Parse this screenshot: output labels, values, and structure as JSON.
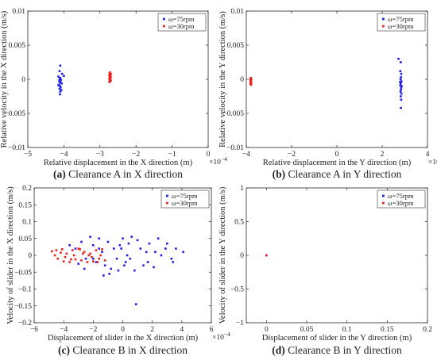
{
  "chart_data": [
    {
      "type": "scatter",
      "caption_label": "(a)",
      "caption_text": " Clearance A in X direction",
      "xlabel": "Relative displacement in the X direction (m)",
      "ylabel": "Relative velocity in the X direction (m/s)",
      "x_multiplier": "×10",
      "x_multiplier_exp": "-4",
      "xlim": [
        -5,
        0
      ],
      "ylim": [
        -0.01,
        0.01
      ],
      "xticks": [
        -5,
        -4,
        -3,
        -2,
        -1,
        0
      ],
      "xtick_labels": [
        "-5",
        "-4",
        "-3",
        "-2",
        "-1",
        "0"
      ],
      "yticks": [
        -0.01,
        -0.005,
        0,
        0.005,
        0.01
      ],
      "ytick_labels": [
        "-0.01",
        "-0.005",
        "0",
        "0.005",
        "0.01"
      ],
      "legend_position": "top-right",
      "series": [
        {
          "name": "ω=75rpm",
          "color": "#1f1fe6",
          "points": [
            [
              -4.1,
              0.002
            ],
            [
              -4.12,
              0.0012
            ],
            [
              -4.05,
              0.0008
            ],
            [
              -4.15,
              0.0004
            ],
            [
              -4.1,
              0.0002
            ],
            [
              -4.08,
              -0.0001
            ],
            [
              -4.13,
              -0.0003
            ],
            [
              -4.1,
              -0.0005
            ],
            [
              -4.06,
              -0.0006
            ],
            [
              -4.14,
              -0.0008
            ],
            [
              -4.1,
              -0.001
            ],
            [
              -4.09,
              -0.0012
            ],
            [
              -4.12,
              -0.0014
            ],
            [
              -4.07,
              -0.0016
            ],
            [
              -4.1,
              -0.0018
            ],
            [
              -4.11,
              -0.0022
            ],
            [
              -4.0,
              0.0005
            ],
            [
              -4.15,
              -0.0009
            ],
            [
              -4.1,
              -0.0004
            ],
            [
              -4.12,
              0.0
            ]
          ]
        },
        {
          "name": "ω=30rpm",
          "color": "#e6231f",
          "points": [
            [
              -2.72,
              0.001
            ],
            [
              -2.7,
              0.0008
            ],
            [
              -2.74,
              0.0006
            ],
            [
              -2.71,
              0.0005
            ],
            [
              -2.73,
              0.0004
            ],
            [
              -2.7,
              0.0003
            ],
            [
              -2.72,
              0.0002
            ],
            [
              -2.74,
              0.0001
            ],
            [
              -2.71,
              0.0
            ],
            [
              -2.73,
              -0.0001
            ],
            [
              -2.7,
              -0.0002
            ],
            [
              -2.72,
              -0.0003
            ],
            [
              -2.74,
              -0.0004
            ],
            [
              -2.71,
              0.0006
            ],
            [
              -2.73,
              0.0009
            ]
          ]
        }
      ]
    },
    {
      "type": "scatter",
      "caption_label": "(b)",
      "caption_text": " Clearance A in Y direction",
      "xlabel": "Relative displacement in the Y direction (m)",
      "ylabel": "Relative velocity in the Y direction (m/s)",
      "x_multiplier": "×10",
      "x_multiplier_exp": "-4",
      "xlim": [
        -4,
        4
      ],
      "ylim": [
        -0.01,
        0.01
      ],
      "xticks": [
        -4,
        -2,
        0,
        2,
        4
      ],
      "xtick_labels": [
        "-4",
        "-2",
        "0",
        "2",
        "4"
      ],
      "yticks": [
        -0.01,
        -0.005,
        0,
        0.005,
        0.01
      ],
      "ytick_labels": [
        "-0.01",
        "-0.005",
        "0",
        "0.005",
        "0.01"
      ],
      "legend_position": "top-right",
      "series": [
        {
          "name": "ω=75rpm",
          "color": "#1f1fe6",
          "points": [
            [
              2.72,
              0.003
            ],
            [
              2.82,
              0.0025
            ],
            [
              2.8,
              0.0012
            ],
            [
              2.84,
              0.0008
            ],
            [
              2.83,
              0.0003
            ],
            [
              2.81,
              0.0
            ],
            [
              2.85,
              -0.0003
            ],
            [
              2.82,
              -0.0006
            ],
            [
              2.8,
              -0.0009
            ],
            [
              2.84,
              -0.0012
            ],
            [
              2.83,
              -0.0015
            ],
            [
              2.81,
              -0.0018
            ],
            [
              2.85,
              -0.0021
            ],
            [
              2.82,
              -0.0025
            ],
            [
              2.84,
              -0.003
            ],
            [
              2.83,
              -0.0042
            ],
            [
              2.86,
              -0.001
            ],
            [
              2.79,
              -0.0004
            ]
          ]
        },
        {
          "name": "ω=30rpm",
          "color": "#e6231f",
          "points": [
            [
              -3.8,
              0.0002
            ],
            [
              -3.78,
              0.0
            ],
            [
              -3.82,
              -0.0001
            ],
            [
              -3.79,
              -0.0002
            ],
            [
              -3.81,
              -0.0003
            ],
            [
              -3.8,
              -0.0004
            ],
            [
              -3.78,
              -0.0005
            ],
            [
              -3.82,
              -0.0006
            ],
            [
              -3.8,
              -0.0007
            ],
            [
              -3.79,
              -0.0008
            ],
            [
              -3.81,
              0.0001
            ]
          ]
        }
      ]
    },
    {
      "type": "scatter",
      "caption_label": "(c)",
      "caption_text": " Clearance B in X direction",
      "xlabel": "Displacement of slider in the X direction (m)",
      "ylabel": "Velocity of slider in the X direction (m/s)",
      "x_multiplier": "×10",
      "x_multiplier_exp": "-4",
      "xlim": [
        -6,
        6
      ],
      "ylim": [
        -0.2,
        0.2
      ],
      "xticks": [
        -6,
        -4,
        -2,
        0,
        2,
        4,
        6
      ],
      "xtick_labels": [
        "-6",
        "-4",
        "-2",
        "0",
        "2",
        "4",
        "6"
      ],
      "yticks": [
        -0.2,
        -0.15,
        -0.1,
        -0.05,
        0,
        0.05,
        0.1,
        0.15,
        0.2
      ],
      "ytick_labels": [
        "-0.2",
        "-0.15",
        "-0.1",
        "-0.05",
        "0",
        "0.05",
        "0.1",
        "0.15",
        "0.2"
      ],
      "legend_position": "top-right",
      "series": [
        {
          "name": "ω=75rpm",
          "color": "#1f1fe6",
          "points": [
            [
              -3.6,
              0.03
            ],
            [
              -3.2,
              0.02
            ],
            [
              -2.8,
              0.04
            ],
            [
              -2.5,
              -0.01
            ],
            [
              -2.2,
              0.055
            ],
            [
              -2.0,
              0.03
            ],
            [
              -1.8,
              -0.02
            ],
            [
              -1.6,
              0.05
            ],
            [
              -1.4,
              0.01
            ],
            [
              -1.2,
              -0.03
            ],
            [
              -1.0,
              0.04
            ],
            [
              -0.8,
              -0.04
            ],
            [
              -0.6,
              0.02
            ],
            [
              -0.4,
              -0.01
            ],
            [
              -0.2,
              0.03
            ],
            [
              0.0,
              0.05
            ],
            [
              0.2,
              -0.02
            ],
            [
              0.4,
              0.035
            ],
            [
              0.6,
              0.055
            ],
            [
              0.8,
              -0.045
            ],
            [
              1.0,
              0.045
            ],
            [
              1.2,
              0.02
            ],
            [
              1.4,
              -0.03
            ],
            [
              1.6,
              0.01
            ],
            [
              1.8,
              0.035
            ],
            [
              2.1,
              -0.035
            ],
            [
              2.4,
              0.05
            ],
            [
              2.6,
              0.0
            ],
            [
              3.0,
              0.035
            ],
            [
              3.3,
              -0.01
            ],
            [
              3.6,
              0.02
            ],
            [
              4.1,
              0.01
            ],
            [
              0.9,
              -0.145
            ],
            [
              -0.9,
              -0.055
            ],
            [
              -2.6,
              -0.04
            ],
            [
              -1.3,
              -0.06
            ],
            [
              0.3,
              0.0
            ],
            [
              -0.3,
              -0.045
            ],
            [
              1.7,
              -0.02
            ],
            [
              2.9,
              0.02
            ],
            [
              -3.0,
              -0.025
            ],
            [
              0.5,
              -0.01
            ],
            [
              -0.1,
              0.02
            ],
            [
              0.1,
              -0.03
            ],
            [
              2.2,
              0.01
            ],
            [
              3.4,
              -0.02
            ],
            [
              -2.0,
              -0.01
            ],
            [
              -1.6,
              0.02
            ]
          ]
        },
        {
          "name": "ω=30rpm",
          "color": "#e6231f",
          "points": [
            [
              -4.8,
              0.012
            ],
            [
              -4.6,
              0.0
            ],
            [
              -4.4,
              -0.01
            ],
            [
              -4.2,
              0.008
            ],
            [
              -4.0,
              -0.018
            ],
            [
              -3.8,
              0.005
            ],
            [
              -3.6,
              -0.02
            ],
            [
              -3.4,
              0.015
            ],
            [
              -3.2,
              -0.012
            ],
            [
              -3.0,
              0.02
            ],
            [
              -2.8,
              -0.015
            ],
            [
              -2.6,
              0.01
            ],
            [
              -2.4,
              -0.02
            ],
            [
              -2.2,
              0.005
            ],
            [
              -2.0,
              -0.018
            ],
            [
              -1.8,
              0.015
            ],
            [
              -1.6,
              -0.01
            ],
            [
              -1.4,
              0.018
            ],
            [
              -1.2,
              -0.015
            ],
            [
              -4.5,
              0.015
            ],
            [
              -3.9,
              -0.005
            ],
            [
              -3.3,
              0.0
            ],
            [
              -2.7,
              0.005
            ],
            [
              -2.1,
              -0.005
            ],
            [
              -1.5,
              0.0
            ],
            [
              -4.1,
              0.018
            ],
            [
              -3.5,
              -0.012
            ],
            [
              -2.9,
              0.018
            ],
            [
              -2.3,
              0.0
            ],
            [
              -1.7,
              -0.02
            ]
          ]
        }
      ]
    },
    {
      "type": "scatter",
      "caption_label": "(d)",
      "caption_text": " Clearance B in Y direction",
      "xlabel": "Displacement of slider in the Y direction (m)",
      "ylabel": "Velocity of slider in the Y direction (m/s)",
      "x_multiplier": "",
      "x_multiplier_exp": "",
      "xlim": [
        -0.025,
        0.2
      ],
      "ylim": [
        -1,
        1
      ],
      "xticks": [
        0,
        0.05,
        0.1,
        0.15,
        0.2
      ],
      "xtick_labels": [
        "0",
        "0.05",
        "0.1",
        "0.15",
        "0.2"
      ],
      "yticks": [
        -1,
        -0.5,
        0,
        0.5,
        1
      ],
      "ytick_labels": [
        "-1",
        "-0.5",
        "0",
        "0.5",
        "1"
      ],
      "legend_position": "top-right",
      "series": [
        {
          "name": "ω=75rpm",
          "color": "#1f1fe6",
          "points": [
            [
              0.0,
              0.0
            ]
          ]
        },
        {
          "name": "ω=30rpm",
          "color": "#e6231f",
          "points": [
            [
              0.0,
              0.0
            ]
          ]
        }
      ]
    }
  ]
}
